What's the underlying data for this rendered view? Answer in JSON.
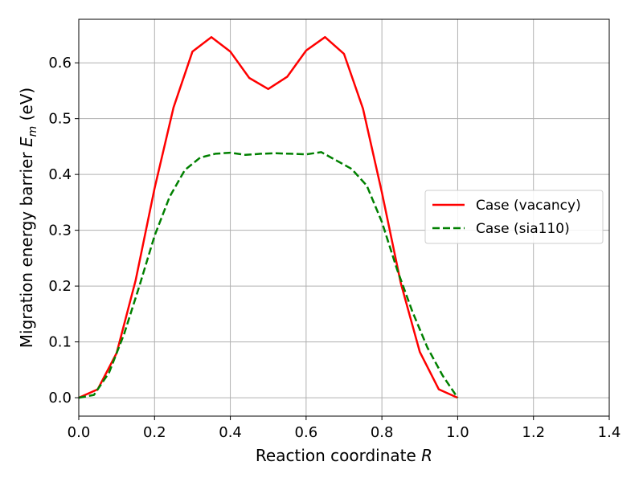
{
  "chart_data": {
    "type": "line",
    "xlabel_text": "Reaction coordinate ",
    "xlabel_var": "R",
    "ylabel_text": "Migration energy barrier ",
    "ylabel_var": "E",
    "ylabel_sub": "m",
    "ylabel_unit": " (eV)",
    "xlim": [
      0.0,
      1.4
    ],
    "ylim": [
      -0.033,
      0.678
    ],
    "xticks": [
      "0.0",
      "0.2",
      "0.4",
      "0.6",
      "0.8",
      "1.0",
      "1.2",
      "1.4"
    ],
    "yticks": [
      "0.0",
      "0.1",
      "0.2",
      "0.3",
      "0.4",
      "0.5",
      "0.6"
    ],
    "grid": true,
    "legend_position": "center-right",
    "series": [
      {
        "name": "Case (vacancy)",
        "color": "#ff0000",
        "dash": "solid",
        "x": [
          0.0,
          0.05,
          0.1,
          0.15,
          0.2,
          0.25,
          0.3,
          0.35,
          0.4,
          0.45,
          0.5,
          0.55,
          0.6,
          0.65,
          0.7,
          0.75,
          0.8,
          0.85,
          0.9,
          0.95,
          1.0
        ],
        "y": [
          0.0,
          0.015,
          0.08,
          0.21,
          0.375,
          0.52,
          0.62,
          0.646,
          0.62,
          0.573,
          0.553,
          0.575,
          0.622,
          0.646,
          0.616,
          0.518,
          0.368,
          0.205,
          0.082,
          0.015,
          0.0
        ]
      },
      {
        "name": "Case (sia110)",
        "color": "#008000",
        "dash": "dashed",
        "x": [
          0.0,
          0.04,
          0.08,
          0.12,
          0.16,
          0.2,
          0.24,
          0.28,
          0.32,
          0.36,
          0.4,
          0.44,
          0.48,
          0.52,
          0.56,
          0.6,
          0.64,
          0.68,
          0.72,
          0.76,
          0.8,
          0.84,
          0.88,
          0.92,
          0.96,
          1.0
        ],
        "y": [
          0.0,
          0.005,
          0.045,
          0.115,
          0.2,
          0.29,
          0.36,
          0.408,
          0.43,
          0.437,
          0.439,
          0.435,
          0.437,
          0.438,
          0.437,
          0.436,
          0.44,
          0.425,
          0.41,
          0.38,
          0.315,
          0.23,
          0.155,
          0.09,
          0.04,
          0.0
        ]
      }
    ]
  }
}
